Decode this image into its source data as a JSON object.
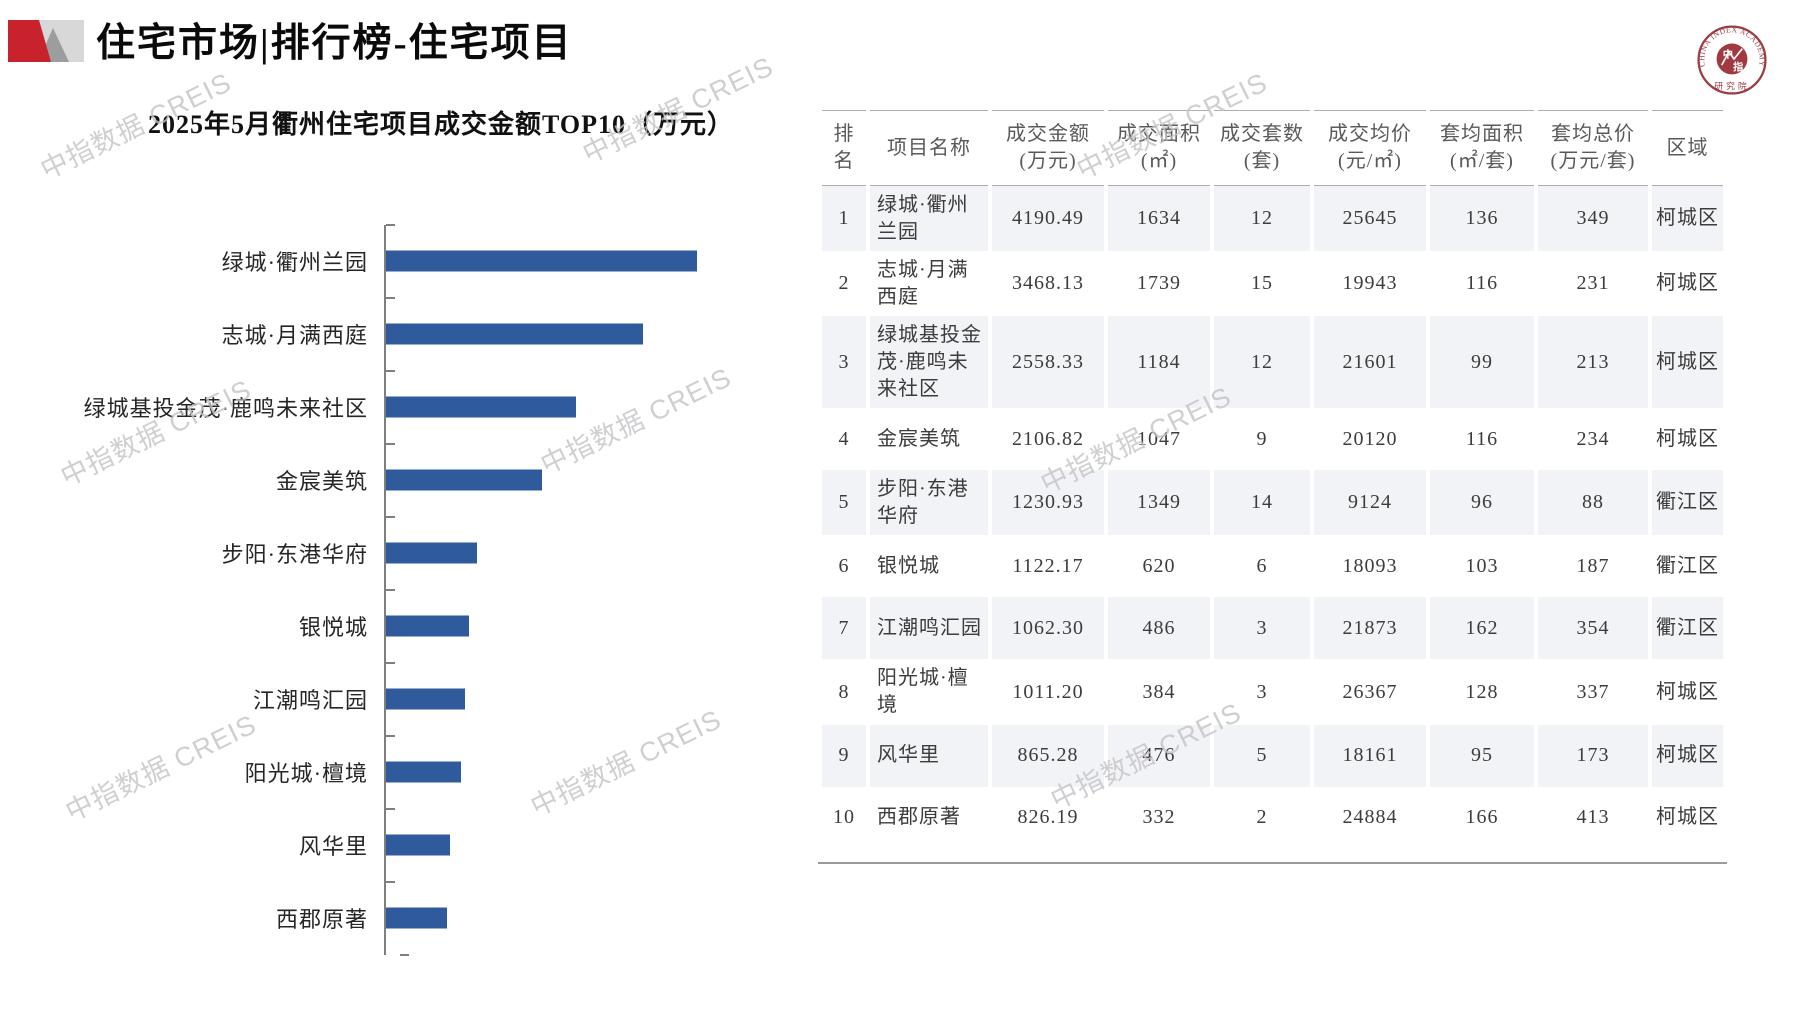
{
  "header": {
    "title": "住宅市场|排行榜-住宅项目"
  },
  "seal": {
    "arc_text": "CHINA INDEX ACADEMY",
    "center_top": "中",
    "center_bottom": "指",
    "bottom_text": "研究院"
  },
  "watermark": {
    "text": "中指数据 CREIS"
  },
  "chart": {
    "title": "2025年5月衢州住宅项目成交金额TOP10（万元）"
  },
  "chart_data": {
    "type": "bar",
    "orientation": "horizontal",
    "title": "2025年5月衢州住宅项目成交金额TOP10（万元）",
    "categories": [
      "绿城·衢州兰园",
      "志城·月满西庭",
      "绿城基投金茂·鹿鸣未来社区",
      "金宸美筑",
      "步阳·东港华府",
      "银悦城",
      "江潮鸣汇园",
      "阳光城·檀境",
      "风华里",
      "西郡原著"
    ],
    "values": [
      4190.49,
      3468.13,
      2558.33,
      2106.82,
      1230.93,
      1122.17,
      1062.3,
      1011.2,
      865.28,
      826.19
    ],
    "xlabel": "",
    "ylabel": "",
    "xlim": [
      0,
      4500
    ],
    "unit": "万元",
    "bar_color": "#2f5b9d",
    "grid": false,
    "legend": false
  },
  "table": {
    "columns": [
      {
        "title": "排名",
        "unit": ""
      },
      {
        "title": "项目名称",
        "unit": ""
      },
      {
        "title": "成交金额",
        "unit": "(万元)"
      },
      {
        "title": "成交面积",
        "unit": "(㎡)"
      },
      {
        "title": "成交套数",
        "unit": "(套)"
      },
      {
        "title": "成交均价",
        "unit": "(元/㎡)"
      },
      {
        "title": "套均面积",
        "unit": "(㎡/套)"
      },
      {
        "title": "套均总价",
        "unit": "(万元/套)"
      },
      {
        "title": "区域",
        "unit": ""
      }
    ],
    "rows": [
      [
        "1",
        "绿城·衢州兰园",
        "4190.49",
        "1634",
        "12",
        "25645",
        "136",
        "349",
        "柯城区"
      ],
      [
        "2",
        "志城·月满西庭",
        "3468.13",
        "1739",
        "15",
        "19943",
        "116",
        "231",
        "柯城区"
      ],
      [
        "3",
        "绿城基投金茂·鹿鸣未来社区",
        "2558.33",
        "1184",
        "12",
        "21601",
        "99",
        "213",
        "柯城区"
      ],
      [
        "4",
        "金宸美筑",
        "2106.82",
        "1047",
        "9",
        "20120",
        "116",
        "234",
        "柯城区"
      ],
      [
        "5",
        "步阳·东港华府",
        "1230.93",
        "1349",
        "14",
        "9124",
        "96",
        "88",
        "衢江区"
      ],
      [
        "6",
        "银悦城",
        "1122.17",
        "620",
        "6",
        "18093",
        "103",
        "187",
        "衢江区"
      ],
      [
        "7",
        "江潮鸣汇园",
        "1062.30",
        "486",
        "3",
        "21873",
        "162",
        "354",
        "衢江区"
      ],
      [
        "8",
        "阳光城·檀境",
        "1011.20",
        "384",
        "3",
        "26367",
        "128",
        "337",
        "柯城区"
      ],
      [
        "9",
        "风华里",
        "865.28",
        "476",
        "5",
        "18161",
        "95",
        "173",
        "柯城区"
      ],
      [
        "10",
        "西郡原著",
        "826.19",
        "332",
        "2",
        "24884",
        "166",
        "413",
        "柯城区"
      ]
    ]
  },
  "colors": {
    "accent_red": "#c8232c",
    "seal_red": "#9b3d43",
    "bar_blue": "#2f5b9d",
    "row_alt_gray": "#f2f3f6",
    "axis_gray": "#7f7f7f",
    "watermark_gray": "#c4c4c8"
  }
}
